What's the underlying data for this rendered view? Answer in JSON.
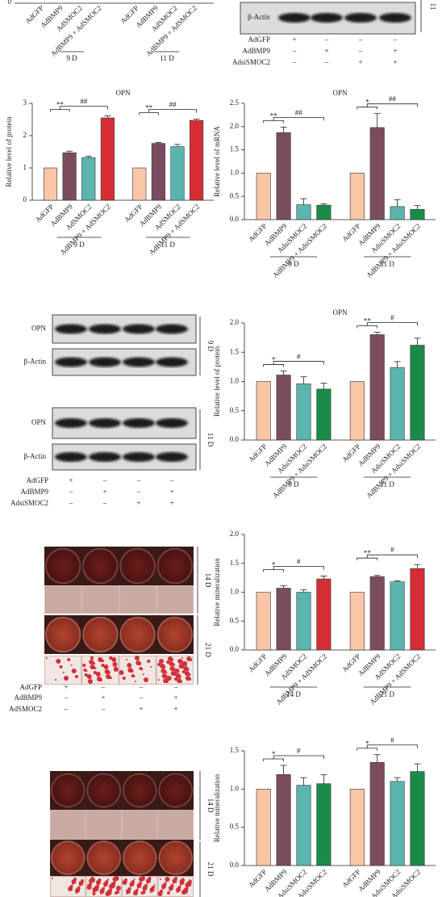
{
  "chart_data": [
    {
      "type": "bar",
      "title": "OPN",
      "y_label": "Relative level of protein",
      "categories": [
        "9 D",
        "11 D"
      ],
      "ylim": [
        0,
        3
      ],
      "yticks": [
        0,
        1,
        2,
        3
      ],
      "series": [
        {
          "name": "AdGFP",
          "color": "#f9c6a8",
          "values": [
            1,
            1
          ],
          "errors": [
            0,
            0
          ]
        },
        {
          "name": "AdBMP9",
          "color": "#7a4d5e",
          "values": [
            1.47,
            1.76
          ],
          "errors": [
            0.05,
            0.03
          ]
        },
        {
          "name": "AdSMOC2",
          "color": "#5bb5ae",
          "values": [
            1.32,
            1.66
          ],
          "errors": [
            0.04,
            0.07
          ]
        },
        {
          "name": "AdBMP9 + AdSMOC2",
          "color": "#d42e35",
          "values": [
            2.55,
            2.47
          ],
          "errors": [
            0.06,
            0.04
          ]
        }
      ],
      "significance": [
        [
          "**",
          "##"
        ],
        [
          "**",
          "##"
        ]
      ]
    },
    {
      "type": "bar",
      "title": "OPN",
      "y_label": "Relative level of mRNA",
      "categories": [
        "9 D",
        "11 D"
      ],
      "ylim": [
        0,
        2.5
      ],
      "yticks": [
        {
          "value": 0,
          "label": "0.0"
        },
        0.5,
        {
          "value": 1,
          "label": "1.0"
        },
        1.5,
        {
          "value": 2,
          "label": "2.0"
        },
        2.5
      ],
      "series": [
        {
          "name": "AdGFP",
          "color": "#f9c6a8",
          "values": [
            1,
            1
          ],
          "errors": [
            0,
            0
          ]
        },
        {
          "name": "AdBMP9",
          "color": "#7a4d5e",
          "values": [
            1.87,
            1.98
          ],
          "errors": [
            0.12,
            0.3
          ]
        },
        {
          "name": "AdsiSMOC2",
          "color": "#5bb5ae",
          "values": [
            0.32,
            0.28
          ],
          "errors": [
            0.13,
            0.15
          ]
        },
        {
          "name": "AdBMP9 + AdsiSMOC2",
          "color": "#1a8a48",
          "values": [
            0.31,
            0.22
          ],
          "errors": [
            0.03,
            0.08
          ]
        }
      ],
      "significance": [
        [
          "**",
          "##"
        ],
        [
          "*",
          "##"
        ]
      ]
    },
    {
      "type": "bar",
      "title": "OPN",
      "y_label": "Relative level of protein",
      "categories": [
        "9 D",
        "11 D"
      ],
      "ylim": [
        0,
        2
      ],
      "yticks": [
        {
          "value": 0,
          "label": "0.0"
        },
        0.5,
        {
          "value": 1,
          "label": "1.0"
        },
        1.5,
        {
          "value": 2,
          "label": "2.0"
        }
      ],
      "series": [
        {
          "name": "AdGFP",
          "color": "#f9c6a8",
          "values": [
            1,
            1
          ],
          "errors": [
            0,
            0
          ]
        },
        {
          "name": "AdBMP9",
          "color": "#7a4d5e",
          "values": [
            1.11,
            1.8
          ],
          "errors": [
            0.07,
            0.04
          ]
        },
        {
          "name": "AdsiSMOC2",
          "color": "#5bb5ae",
          "values": [
            0.96,
            1.24
          ],
          "errors": [
            0.12,
            0.1
          ]
        },
        {
          "name": "AdBMP9 + AdsiSMOC2",
          "color": "#1a8a48",
          "values": [
            0.87,
            1.62
          ],
          "errors": [
            0.1,
            0.12
          ]
        }
      ],
      "significance": [
        [
          "*",
          "#"
        ],
        [
          "**",
          "#"
        ]
      ]
    },
    {
      "type": "bar",
      "y_label": "Relative mineralization",
      "categories": [
        "14 D",
        "21 D"
      ],
      "ylim": [
        0,
        2
      ],
      "yticks": [
        {
          "value": 0,
          "label": "0.0"
        },
        0.5,
        {
          "value": 1,
          "label": "1.0"
        },
        1.5,
        {
          "value": 2,
          "label": "2.0"
        }
      ],
      "series": [
        {
          "name": "AdGFP",
          "color": "#f9c6a8",
          "values": [
            1,
            1
          ],
          "errors": [
            0,
            0
          ]
        },
        {
          "name": "AdBMP9",
          "color": "#7a4d5e",
          "values": [
            1.07,
            1.27
          ],
          "errors": [
            0.04,
            0.02
          ]
        },
        {
          "name": "AdSMOC2",
          "color": "#5bb5ae",
          "values": [
            1,
            1.18
          ],
          "errors": [
            0.04,
            0.02
          ]
        },
        {
          "name": "AdBMP9 + AdSMOC2",
          "color": "#d42e35",
          "values": [
            1.23,
            1.41
          ],
          "errors": [
            0.05,
            0.07
          ]
        }
      ],
      "significance": [
        [
          "*",
          "#"
        ],
        [
          "**",
          "#"
        ]
      ]
    },
    {
      "type": "bar",
      "y_label": "Relative mineralization",
      "categories": [
        null,
        null
      ],
      "ylim": [
        0,
        1.5
      ],
      "yticks": [
        {
          "value": 0,
          "label": "0.0"
        },
        0.5,
        {
          "value": 1,
          "label": "1.0"
        },
        1.5
      ],
      "series": [
        {
          "name": "AdGFP",
          "color": "#f9c6a8",
          "values": [
            1,
            1
          ],
          "errors": [
            0,
            0
          ]
        },
        {
          "name": "AdBMP9",
          "color": "#7a4d5e",
          "values": [
            1.19,
            1.35
          ],
          "errors": [
            0.12,
            0.1
          ]
        },
        {
          "name": "AdsiSMOC2",
          "color": "#5bb5ae",
          "values": [
            1.05,
            1.1
          ],
          "errors": [
            0.1,
            0.05
          ]
        },
        {
          "name": "AdBMP9 + AdsiSMOC2",
          "color": "#1a8a48",
          "values": [
            1.07,
            1.23
          ],
          "errors": [
            0.12,
            0.1
          ]
        }
      ],
      "significance": [
        [
          "*",
          "#"
        ],
        [
          "*",
          "#"
        ]
      ]
    }
  ],
  "top_strip": {
    "y_tick": 0,
    "x_labels": [
      "AdGFP",
      "AdBMP9",
      "AdSMOC2",
      "AdBMP9 + AdSMOC2"
    ],
    "groups": [
      "9 D",
      "11 D"
    ]
  },
  "blot_top": {
    "rows": [
      "β-Actin"
    ],
    "side_label": "11",
    "conditions": [
      {
        "label": "AdGFP",
        "signs": [
          "+",
          "–",
          "–",
          "–"
        ]
      },
      {
        "label": "AdBMP9",
        "signs": [
          "–",
          "+",
          "–",
          "+"
        ]
      },
      {
        "label": "AdsiSMOC2",
        "signs": [
          "–",
          "–",
          "+",
          "+"
        ]
      }
    ]
  },
  "blot_mid": {
    "rows": [
      "OPN",
      "β-Actin",
      "OPN",
      "β-Actin"
    ],
    "groups": [
      "9 D",
      "11 D"
    ],
    "conditions": [
      {
        "label": "AdGFP",
        "signs": [
          "+",
          "–",
          "–",
          "–"
        ]
      },
      {
        "label": "AdBMP9",
        "signs": [
          "–",
          "+",
          "–",
          "+"
        ]
      },
      {
        "label": "AdsiSMOC2",
        "signs": [
          "–",
          "–",
          "+",
          "+"
        ]
      }
    ]
  },
  "stain_1": {
    "groups": [
      "14 D",
      "21 D"
    ],
    "conditions": [
      {
        "label": "AdGFP",
        "signs": [
          "+",
          "–",
          "–",
          "–"
        ]
      },
      {
        "label": "AdBMP9",
        "signs": [
          "–",
          "+",
          "–",
          "+"
        ]
      },
      {
        "label": "AdSMOC2",
        "signs": [
          "–",
          "–",
          "+",
          "+"
        ]
      }
    ]
  },
  "stain_2": {
    "groups": [
      "14 D",
      "21 D"
    ]
  }
}
